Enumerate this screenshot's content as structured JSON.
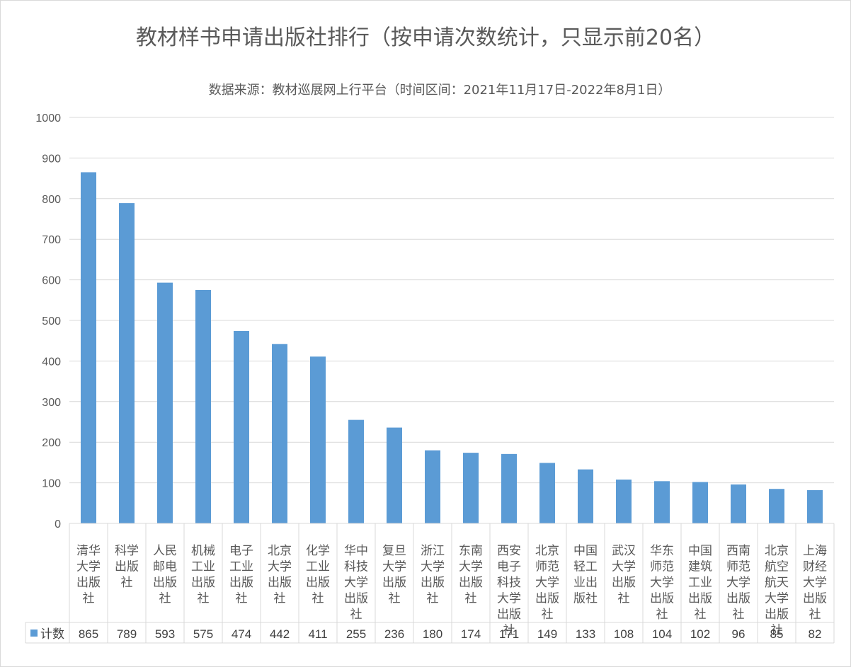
{
  "colors": {
    "bar": "#5B9BD5",
    "grid": "#d9d9d9",
    "text": "#595959"
  },
  "chart_data": {
    "type": "bar",
    "title": "教材样书申请出版社排行（按申请次数统计，只显示前20名）",
    "subtitle": "数据来源：教材巡展网上行平台（时间区间：2021年11月17日-2022年8月1日）",
    "ylim": [
      0,
      1000
    ],
    "yticks": [
      0,
      100,
      200,
      300,
      400,
      500,
      600,
      700,
      800,
      900,
      1000
    ],
    "grid": true,
    "legend": "data-table",
    "categories": [
      "清华大学出版社",
      "科学出版社",
      "人民邮电出版社",
      "机械工业出版社",
      "电子工业出版社",
      "北京大学出版社",
      "化学工业出版社",
      "华中科技大学出版社",
      "复旦大学出版社",
      "浙江大学出版社",
      "东南大学出版社",
      "西安电子科技大学出版社",
      "北京师范大学出版社",
      "中国轻工业出版社",
      "武汉大学出版社",
      "华东师范大学出版社",
      "中国建筑工业出版社",
      "西南师范大学出版社",
      "北京航空航天大学出版社",
      "上海财经大学出版社"
    ],
    "category_lines": [
      [
        "清华",
        "大学",
        "出版",
        "社"
      ],
      [
        "科学",
        "出版",
        "社"
      ],
      [
        "人民",
        "邮电",
        "出版",
        "社"
      ],
      [
        "机械",
        "工业",
        "出版",
        "社"
      ],
      [
        "电子",
        "工业",
        "出版",
        "社"
      ],
      [
        "北京",
        "大学",
        "出版",
        "社"
      ],
      [
        "化学",
        "工业",
        "出版",
        "社"
      ],
      [
        "华中",
        "科技",
        "大学",
        "出版",
        "社"
      ],
      [
        "复旦",
        "大学",
        "出版",
        "社"
      ],
      [
        "浙江",
        "大学",
        "出版",
        "社"
      ],
      [
        "东南",
        "大学",
        "出版",
        "社"
      ],
      [
        "西安",
        "电子",
        "科技",
        "大学",
        "出版",
        "社"
      ],
      [
        "北京",
        "师范",
        "大学",
        "出版",
        "社"
      ],
      [
        "中国",
        "轻工",
        "业出",
        "版社"
      ],
      [
        "武汉",
        "大学",
        "出版",
        "社"
      ],
      [
        "华东",
        "师范",
        "大学",
        "出版",
        "社"
      ],
      [
        "中国",
        "建筑",
        "工业",
        "出版",
        "社"
      ],
      [
        "西南",
        "师范",
        "大学",
        "出版",
        "社"
      ],
      [
        "北京",
        "航空",
        "航天",
        "大学",
        "出版",
        "社"
      ],
      [
        "上海",
        "财经",
        "大学",
        "出版",
        "社"
      ]
    ],
    "series": [
      {
        "name": "计数",
        "values": [
          865,
          789,
          593,
          575,
          474,
          442,
          411,
          255,
          236,
          180,
          174,
          171,
          149,
          133,
          108,
          104,
          102,
          96,
          85,
          82
        ]
      }
    ]
  }
}
